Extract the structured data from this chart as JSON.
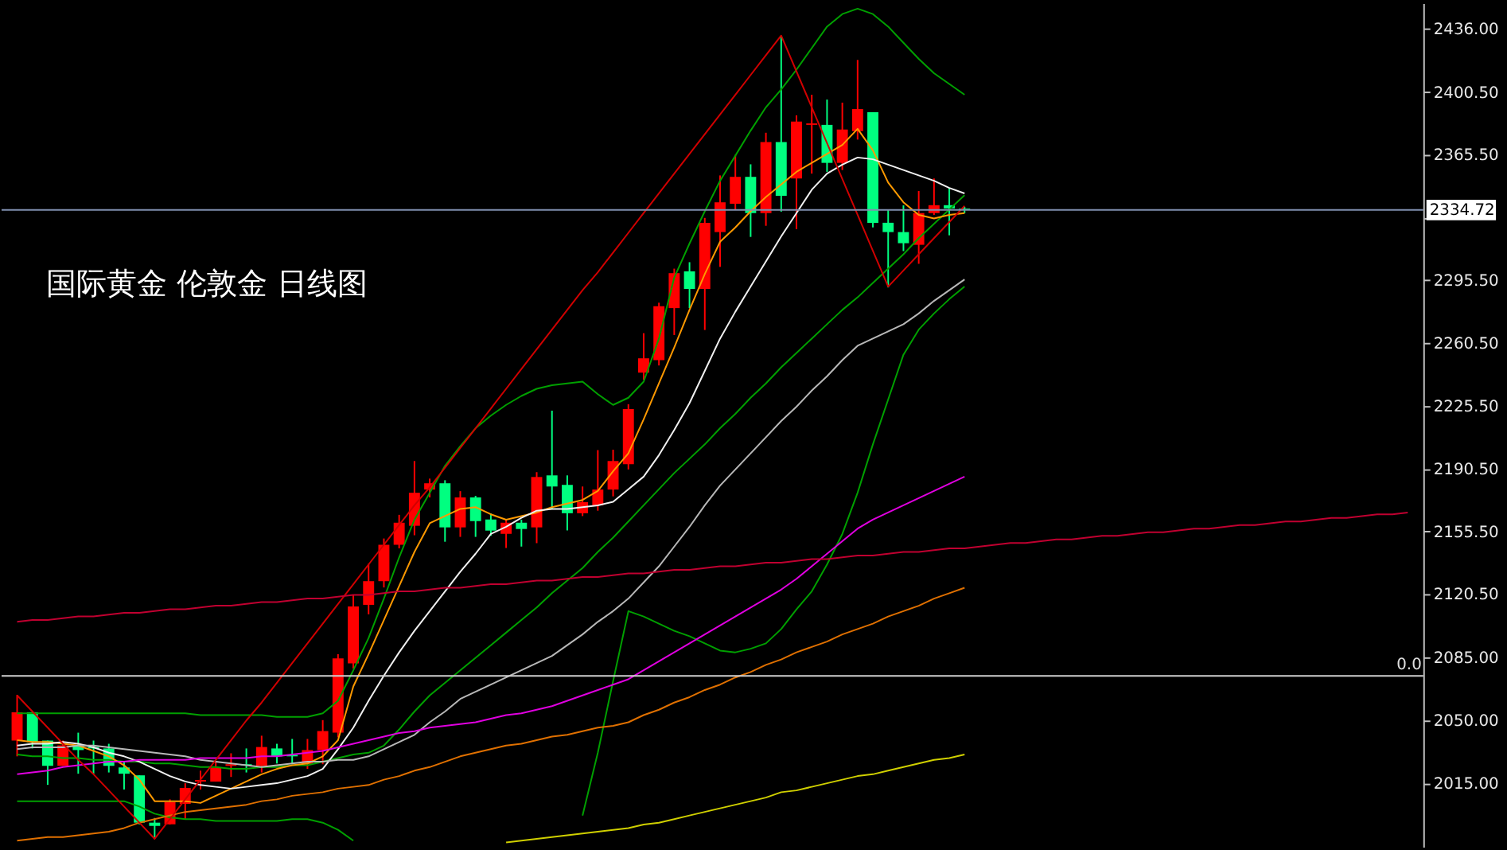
{
  "chart_data": {
    "type": "candlestick",
    "categories": [
      null,
      null,
      null,
      null,
      null,
      null,
      null,
      null,
      null,
      null,
      null,
      null,
      null,
      null,
      null,
      null,
      null,
      null,
      null,
      null,
      null,
      null,
      null,
      null,
      null,
      null,
      null,
      null,
      null,
      null,
      null,
      null,
      null,
      null,
      null,
      null,
      null,
      null,
      null,
      null,
      null,
      null,
      null,
      null,
      null,
      null,
      null,
      null,
      null,
      null,
      null,
      null,
      null,
      null,
      null,
      null,
      null,
      null,
      null,
      null,
      null,
      null,
      null,
      null,
      null,
      null,
      null,
      null,
      null,
      null,
      null,
      null,
      null,
      null,
      null,
      null,
      null,
      null,
      null,
      null,
      null,
      null,
      null,
      null,
      null,
      null,
      null,
      null,
      null,
      null,
      null,
      null
    ],
    "ohlc": [
      [
        2038.8,
        2064.3,
        2030.0,
        2054.6
      ],
      [
        2054.6,
        2054.6,
        2034.4,
        2037.9
      ],
      [
        2038.8,
        2038.8,
        2014.1,
        2024.7
      ],
      [
        2024.7,
        2038.8,
        2024.7,
        2036.1
      ],
      [
        2036.1,
        2043.2,
        2020.3,
        2033.5
      ],
      [
        2035.2,
        2038.8,
        2020.3,
        2034.4
      ],
      [
        2034.4,
        2037.0,
        2021.0,
        2024.7
      ],
      [
        2023.8,
        2027.3,
        2011.5,
        2020.3
      ],
      [
        2019.4,
        2019.4,
        1992.0,
        1993.0
      ],
      [
        1993.0,
        1995.6,
        1984.2,
        1991.2
      ],
      [
        1992.1,
        2006.0,
        1992.0,
        2004.4
      ],
      [
        2003.5,
        2015.0,
        1994.7,
        2012.4
      ],
      [
        2015.9,
        2022.0,
        2011.5,
        2016.8
      ],
      [
        2015.9,
        2027.3,
        2015.9,
        2023.8
      ],
      [
        2024.7,
        2031.7,
        2018.5,
        2025.6
      ],
      [
        2025.6,
        2034.4,
        2021.0,
        2025.0
      ],
      [
        2024.7,
        2041.5,
        2021.0,
        2035.2
      ],
      [
        2034.4,
        2037.0,
        2026.0,
        2030.0
      ],
      [
        2030.8,
        2039.7,
        2025.6,
        2030.0
      ],
      [
        2025.6,
        2039.7,
        2023.0,
        2033.5
      ],
      [
        2033.5,
        2050.2,
        2025.6,
        2044.1
      ],
      [
        2043.2,
        2087.0,
        2040.6,
        2084.6
      ],
      [
        2081.9,
        2119.8,
        2079.0,
        2113.6
      ],
      [
        2114.5,
        2137.4,
        2109.2,
        2127.7
      ],
      [
        2127.7,
        2151.5,
        2124.2,
        2148.0
      ],
      [
        2148.0,
        2164.7,
        2146.0,
        2160.3
      ],
      [
        2158.6,
        2194.7,
        2153.3,
        2177.0
      ],
      [
        2178.8,
        2184.9,
        2174.4,
        2182.3
      ],
      [
        2182.3,
        2184.0,
        2149.7,
        2157.7
      ],
      [
        2157.7,
        2177.9,
        2152.4,
        2174.4
      ],
      [
        2174.4,
        2175.3,
        2152.4,
        2161.2
      ],
      [
        2162.1,
        2165.5,
        2153.0,
        2155.9
      ],
      [
        2154.1,
        2162.0,
        2146.2,
        2160.3
      ],
      [
        2160.3,
        2162.0,
        2147.0,
        2156.8
      ],
      [
        2157.7,
        2188.5,
        2148.9,
        2185.8
      ],
      [
        2186.7,
        2222.8,
        2168.2,
        2180.5
      ],
      [
        2181.4,
        2186.7,
        2156.0,
        2165.6
      ],
      [
        2165.6,
        2180.5,
        2164.0,
        2171.8
      ],
      [
        2170.0,
        2200.8,
        2167.0,
        2178.8
      ],
      [
        2178.8,
        2201.0,
        2175.0,
        2194.7
      ],
      [
        2192.9,
        2226.4,
        2190.0,
        2223.7
      ],
      [
        2244.0,
        2266.0,
        2240.0,
        2252.0
      ],
      [
        2251.0,
        2283.0,
        2248.0,
        2281.0
      ],
      [
        2280.0,
        2302.0,
        2265.0,
        2299.5
      ],
      [
        2300.5,
        2305.6,
        2280.0,
        2290.7
      ],
      [
        2290.7,
        2330.3,
        2267.8,
        2327.6
      ],
      [
        2322.4,
        2354.0,
        2303.0,
        2339.0
      ],
      [
        2338.2,
        2365.5,
        2335.0,
        2353.2
      ],
      [
        2353.2,
        2360.2,
        2319.7,
        2333.0
      ],
      [
        2333.0,
        2377.8,
        2325.9,
        2372.6
      ],
      [
        2372.6,
        2431.6,
        2333.8,
        2342.6
      ],
      [
        2352.3,
        2387.5,
        2324.0,
        2384.0
      ],
      [
        2382.2,
        2399.0,
        2355.0,
        2383.0
      ],
      [
        2382.2,
        2396.3,
        2356.0,
        2361.0
      ],
      [
        2361.0,
        2394.6,
        2357.0,
        2379.6
      ],
      [
        2378.7,
        2418.4,
        2374.0,
        2391.0
      ],
      [
        2389.3,
        2389.3,
        2325.0,
        2327.6
      ],
      [
        2327.6,
        2334.7,
        2291.5,
        2322.4
      ],
      [
        2322.4,
        2337.3,
        2311.8,
        2316.2
      ],
      [
        2315.3,
        2345.3,
        2304.7,
        2333.0
      ],
      [
        2333.0,
        2352.3,
        2332.0,
        2337.4
      ],
      [
        2337.4,
        2347.0,
        2320.6,
        2335.6
      ],
      [
        2335.5,
        2336.5,
        2333.0,
        2334.7
      ],
      null,
      null,
      null,
      null,
      null,
      null,
      null,
      null,
      null,
      null,
      null,
      null,
      null,
      null,
      null,
      null,
      null,
      null,
      null,
      null,
      null,
      null,
      null,
      null,
      null,
      null,
      null,
      null,
      null
    ],
    "colors": [
      "#ff0000",
      "#00ff80",
      "#00ff80",
      "#ff0000",
      "#00ff80",
      "#00ff80",
      "#00ff80",
      "#00ff80",
      "#00ff80",
      "#00ff80",
      "#ff0000",
      "#ff0000",
      "#ff0000",
      "#ff0000",
      "#ff0000",
      "#00ff80",
      "#ff0000",
      "#00ff80",
      "#00ff80",
      "#ff0000",
      "#ff0000",
      "#ff0000",
      "#ff0000",
      "#ff0000",
      "#ff0000",
      "#ff0000",
      "#ff0000",
      "#ff0000",
      "#00ff80",
      "#ff0000",
      "#00ff80",
      "#00ff80",
      "#ff0000",
      "#00ff80",
      "#ff0000",
      "#00ff80",
      "#00ff80",
      "#ff0000",
      "#ff0000",
      "#ff0000",
      "#ff0000",
      "#ff0000",
      "#ff0000",
      "#ff0000",
      "#00ff80",
      "#ff0000",
      "#ff0000",
      "#ff0000",
      "#00ff80",
      "#ff0000",
      "#00ff80",
      "#ff0000",
      "#ff0000",
      "#00ff80",
      "#ff0000",
      "#ff0000",
      "#00ff80",
      "#00ff80",
      "#00ff80",
      "#ff0000",
      "#ff0000",
      "#00ff80",
      "#00ff80",
      null,
      null,
      null,
      null,
      null,
      null,
      null,
      null,
      null,
      null,
      null,
      null,
      null,
      null,
      null,
      null,
      null,
      null,
      null,
      null,
      null,
      null,
      null,
      null,
      null,
      null,
      null,
      null,
      null
    ],
    "ylim": [
      1979.5,
      2450.1
    ],
    "yticks": [
      {
        "value": 2015,
        "label": "2015.00"
      },
      {
        "value": 2050,
        "label": "2050.00"
      },
      {
        "value": 2085,
        "label": "2085.00"
      },
      {
        "value": 2120.5,
        "label": "2120.50"
      },
      {
        "value": 2155.5,
        "label": "2155.50"
      },
      {
        "value": 2190.5,
        "label": "2190.50"
      },
      {
        "value": 2225.5,
        "label": "2225.50"
      },
      {
        "value": 2260.5,
        "label": "2260.50"
      },
      {
        "value": 2295.5,
        "label": "2295.50"
      },
      {
        "value": 2330.5,
        "label": null
      },
      {
        "value": 2365.5,
        "label": "2365.50"
      },
      {
        "value": 2400.5,
        "label": "2400.50"
      },
      {
        "value": 2436,
        "label": "2436.00"
      }
    ],
    "tick_labels": "y",
    "series": [
      {
        "type": "line",
        "color": "#00a000",
        "values": [
          2054,
          2054,
          2054,
          2054,
          2054,
          2054,
          2054,
          2054,
          2054,
          2054,
          2054,
          2054,
          2053,
          2053,
          2053,
          2053,
          2053,
          2052,
          2052,
          2052,
          2054,
          2061,
          2078,
          2096,
          2118,
          2141,
          2162,
          2177,
          2192,
          2203,
          2213,
          2220,
          2226,
          2231,
          2235,
          2237,
          2238,
          2239,
          2232,
          2226,
          2230,
          2239,
          2263,
          2297,
          2316,
          2334,
          2351,
          2365,
          2379,
          2392,
          2402,
          2413,
          2425,
          2437,
          2444,
          2447,
          2444,
          2437,
          2428,
          2419,
          2411,
          2405,
          2399,
          null,
          null,
          null,
          null,
          null,
          null,
          null,
          null,
          null,
          null,
          null,
          null,
          null,
          null,
          null,
          null,
          null,
          null,
          null,
          null,
          null,
          null,
          null,
          null,
          null,
          null,
          null,
          null,
          null
        ]
      },
      {
        "type": "line",
        "color": "#00a000",
        "values": [
          2005,
          2005,
          2005,
          2005,
          2005,
          2005,
          2005,
          2005,
          2002,
          1998,
          1996,
          1995,
          1995,
          1994,
          1994,
          1994,
          1994,
          1994,
          1995,
          1995,
          1993,
          1989,
          1983,
          null,
          null,
          null,
          null,
          null,
          null,
          null,
          null,
          null,
          null,
          null,
          null,
          null,
          null,
          1997,
          2032,
          2072,
          2111,
          2108,
          2104,
          2100,
          2097,
          2093,
          2089,
          2088,
          2090,
          2093,
          2101,
          2112,
          2122,
          2137,
          2154,
          2177,
          2204,
          2229,
          2254,
          2268,
          2277,
          2285,
          2292,
          null,
          null,
          null,
          null,
          null,
          null,
          null,
          null,
          null,
          null,
          null,
          null,
          null,
          null,
          null,
          null,
          null,
          null,
          null,
          null,
          null,
          null,
          null,
          null,
          null,
          null,
          null,
          null,
          null
        ]
      },
      {
        "type": "line",
        "color": "#00a000",
        "values": [
          2031,
          2030,
          2030,
          2029,
          2029,
          2028,
          2028,
          2027,
          2027,
          2026,
          2026,
          2025,
          2024,
          2024,
          2023,
          2023,
          2024,
          2024,
          2025,
          2025,
          2027,
          2029,
          2031,
          2032,
          2036,
          2045,
          2055,
          2064,
          2071,
          2078,
          2085,
          2092,
          2099,
          2106,
          2113,
          2121,
          2128,
          2135,
          2144,
          2152,
          2161,
          2170,
          2179,
          2188,
          2196,
          2204,
          2213,
          2221,
          2230,
          2238,
          2247,
          2255,
          2263,
          2271,
          2279,
          2286,
          2294,
          2302,
          2310,
          2319,
          2327,
          2335,
          2343,
          null,
          null,
          null,
          null,
          null,
          null,
          null,
          null,
          null,
          null,
          null,
          null,
          null,
          null,
          null,
          null,
          null,
          null,
          null,
          null,
          null,
          null,
          null,
          null,
          null,
          null,
          null,
          null,
          null
        ]
      },
      {
        "type": "line",
        "color": "#ff9900",
        "values": [
          2039,
          2038,
          2038,
          2037,
          2036,
          2033,
          2030,
          2025,
          2017,
          2005,
          2005,
          2005,
          2004,
          2008,
          2012,
          2016,
          2020,
          2023,
          2025,
          2026,
          2030,
          2039,
          2069,
          2087,
          2106,
          2125,
          2144,
          2160,
          2164,
          2168,
          2169,
          2165,
          2162,
          2164,
          2166,
          2169,
          2171,
          2173,
          2178,
          2189,
          2199,
          2218,
          2238,
          2258,
          2279,
          2299,
          2317,
          2325,
          2334,
          2342,
          2349,
          2356,
          2361,
          2366,
          2371,
          2380,
          2368,
          2350,
          2339,
          2332,
          2330,
          2332,
          2333,
          null,
          null,
          null,
          null,
          null,
          null,
          null,
          null,
          null,
          null,
          null,
          null,
          null,
          null,
          null,
          null,
          null,
          null,
          null,
          null,
          null,
          null,
          null,
          null,
          null,
          null,
          null,
          null,
          null
        ]
      },
      {
        "type": "line",
        "color": "#f0f0f0",
        "values": [
          2036,
          2037,
          2037,
          2038,
          2037,
          2035,
          2032,
          2030,
          2027,
          2023,
          2019,
          2016,
          2014,
          2013,
          2012,
          2013,
          2014,
          2015,
          2017,
          2019,
          2023,
          2034,
          2046,
          2061,
          2075,
          2088,
          2100,
          2111,
          2122,
          2133,
          2143,
          2154,
          2158,
          2163,
          2167,
          2168,
          2168,
          2169,
          2170,
          2172,
          2179,
          2186,
          2198,
          2212,
          2227,
          2245,
          2263,
          2278,
          2292,
          2306,
          2320,
          2333,
          2346,
          2355,
          2360,
          2364,
          2363,
          2360,
          2357,
          2354,
          2351,
          2347,
          2344,
          null,
          null,
          null,
          null,
          null,
          null,
          null,
          null,
          null,
          null,
          null,
          null,
          null,
          null,
          null,
          null,
          null,
          null,
          null,
          null,
          null,
          null,
          null,
          null,
          null,
          null,
          null,
          null,
          null
        ]
      },
      {
        "type": "line",
        "color": "#b8b8b8",
        "values": [
          2034,
          2035,
          2035,
          2035,
          2036,
          2036,
          2035,
          2034,
          2033,
          2032,
          2031,
          2030,
          2028,
          2027,
          2026,
          2025,
          2024,
          2025,
          2026,
          2027,
          2027,
          2028,
          2028,
          2030,
          2034,
          2038,
          2042,
          2049,
          2055,
          2062,
          2066,
          2070,
          2074,
          2078,
          2082,
          2086,
          2092,
          2098,
          2105,
          2111,
          2118,
          2127,
          2136,
          2147,
          2158,
          2170,
          2181,
          2190,
          2199,
          2208,
          2217,
          2225,
          2234,
          2242,
          2251,
          2259,
          2263,
          2267,
          2271,
          2277,
          2284,
          2290,
          2296,
          null,
          null,
          null,
          null,
          null,
          null,
          null,
          null,
          null,
          null,
          null,
          null,
          null,
          null,
          null,
          null,
          null,
          null,
          null,
          null,
          null,
          null,
          null,
          null,
          null,
          null,
          null,
          null,
          null
        ]
      },
      {
        "type": "line",
        "color": "#e000e0",
        "values": [
          2020,
          2021,
          2022,
          2024,
          2025,
          2026,
          2027,
          2027,
          2028,
          2028,
          2028,
          2028,
          2029,
          2029,
          2029,
          2029,
          2030,
          2030,
          2031,
          2032,
          2033,
          2035,
          2037,
          2039,
          2041,
          2043,
          2044,
          2046,
          2047,
          2048,
          2049,
          2051,
          2053,
          2054,
          2056,
          2058,
          2061,
          2064,
          2067,
          2070,
          2073,
          2078,
          2083,
          2088,
          2093,
          2098,
          2103,
          2108,
          2113,
          2118,
          2123,
          2129,
          2136,
          2143,
          2150,
          2157,
          2162,
          2166,
          2170,
          2174,
          2178,
          2182,
          2186,
          null,
          null,
          null,
          null,
          null,
          null,
          null,
          null,
          null,
          null,
          null,
          null,
          null,
          null,
          null,
          null,
          null,
          null,
          null,
          null,
          null,
          null,
          null,
          null,
          null,
          null,
          null,
          null,
          null
        ]
      },
      {
        "type": "line",
        "color": "#e07000",
        "values": [
          1983,
          1984,
          1985,
          1985,
          1986,
          1987,
          1988,
          1990,
          1993,
          1995,
          1997,
          1999,
          2000,
          2001,
          2002,
          2003,
          2005,
          2006,
          2008,
          2009,
          2010,
          2012,
          2013,
          2014,
          2017,
          2019,
          2022,
          2024,
          2027,
          2030,
          2032,
          2034,
          2036,
          2037,
          2039,
          2041,
          2042,
          2044,
          2046,
          2047,
          2049,
          2053,
          2056,
          2060,
          2063,
          2067,
          2070,
          2074,
          2077,
          2081,
          2084,
          2088,
          2091,
          2094,
          2098,
          2101,
          2104,
          2108,
          2111,
          2114,
          2118,
          2121,
          2124,
          null,
          null,
          null,
          null,
          null,
          null,
          null,
          null,
          null,
          null,
          null,
          null,
          null,
          null,
          null,
          null,
          null,
          null,
          null,
          null,
          null,
          null,
          null,
          null,
          null,
          null,
          null,
          null,
          null
        ]
      },
      {
        "type": "line",
        "color": "#d0d000",
        "values": [
          null,
          null,
          null,
          null,
          null,
          null,
          null,
          null,
          null,
          null,
          null,
          null,
          null,
          null,
          null,
          null,
          null,
          null,
          null,
          null,
          null,
          null,
          null,
          null,
          null,
          null,
          null,
          null,
          null,
          null,
          null,
          null,
          1982,
          1983,
          1984,
          1985,
          1986,
          1987,
          1988,
          1989,
          1990,
          1992,
          1993,
          1995,
          1997,
          1999,
          2001,
          2003,
          2005,
          2007,
          2010,
          2011,
          2013,
          2015,
          2017,
          2019,
          2020,
          2022,
          2024,
          2026,
          2028,
          2029,
          2031,
          null,
          null,
          null,
          null,
          null,
          null,
          null,
          null,
          null,
          null,
          null,
          null,
          null,
          null,
          null,
          null,
          null,
          null,
          null,
          null,
          null,
          null,
          null,
          null,
          null,
          null,
          null,
          null,
          null
        ]
      },
      {
        "type": "line",
        "color": "#d00000",
        "values": [
          2064,
          2055,
          2046,
          2037,
          2028,
          2020,
          2011,
          2002,
          1993,
          1984,
          1995,
          2006,
          2017,
          2028,
          2039,
          2050,
          2060,
          2071,
          2082,
          2093,
          2104,
          2115,
          2126,
          2137,
          2148,
          2159,
          2170,
          2180,
          2191,
          2202,
          2213,
          2224,
          2235,
          2246,
          2257,
          2268,
          2279,
          2290,
          2300,
          2311,
          2322,
          2333,
          2344,
          2355,
          2366,
          2377,
          2388,
          2399,
          2410,
          2421,
          2432,
          2412,
          2392,
          2372,
          2352,
          2332,
          2312,
          2292,
          2301,
          2310,
          2319,
          2328,
          2337,
          null,
          null,
          null,
          null,
          null,
          null,
          null,
          null,
          null,
          null,
          null,
          null,
          null,
          null,
          null,
          null,
          null,
          null,
          null,
          null,
          null,
          null,
          null,
          null,
          null,
          null,
          null,
          null,
          null
        ]
      },
      {
        "type": "line",
        "color": "#c00030",
        "values": [
          2105,
          2106,
          2106,
          2107,
          2108,
          2108,
          2109,
          2110,
          2110,
          2111,
          2112,
          2112,
          2113,
          2114,
          2114,
          2115,
          2116,
          2116,
          2117,
          2118,
          2118,
          2119,
          2120,
          2120,
          2121,
          2122,
          2122,
          2123,
          2124,
          2124,
          2125,
          2126,
          2126,
          2127,
          2128,
          2128,
          2129,
          2130,
          2130,
          2131,
          2132,
          2132,
          2133,
          2134,
          2134,
          2135,
          2136,
          2136,
          2137,
          2138,
          2138,
          2139,
          2140,
          2140,
          2141,
          2142,
          2142,
          2143,
          2144,
          2144,
          2145,
          2146,
          2146,
          2147,
          2148,
          2149,
          2149,
          2150,
          2151,
          2151,
          2152,
          2153,
          2153,
          2154,
          2155,
          2155,
          2156,
          2157,
          2157,
          2158,
          2159,
          2159,
          2160,
          2161,
          2161,
          2162,
          2163,
          2163,
          2164,
          2165,
          2165,
          2166
        ]
      }
    ],
    "ref_lines": [
      {
        "axis": "y",
        "value": 2334.72,
        "label": "2334.72",
        "color": "#8090b0"
      },
      {
        "axis": "y",
        "value": 2074.9,
        "color": "#d0d0d0"
      }
    ],
    "annotations": [
      "国际黄金 伦敦金 日线图",
      {
        "text": "0.0",
        "y": 2074.9
      }
    ]
  }
}
